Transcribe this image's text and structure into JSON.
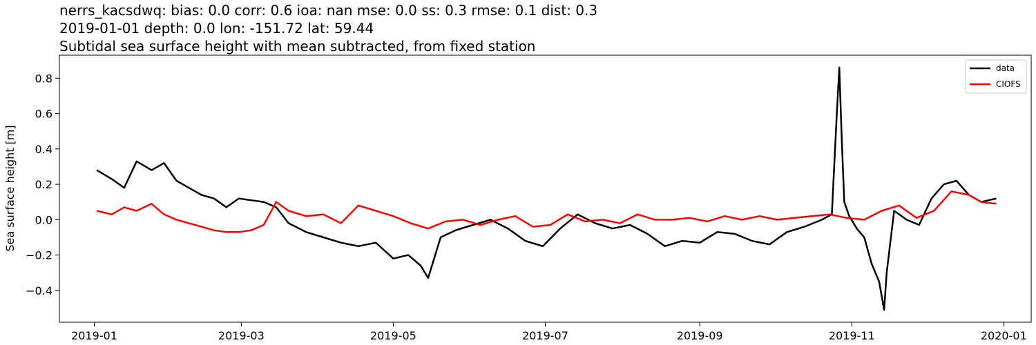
{
  "chart_data": {
    "type": "line",
    "title_lines": [
      "nerrs_kacsdwq: bias: 0.0  corr: 0.6  ioa: nan  mse: 0.0  ss: 0.3  rmse: 0.1  dist: 0.3",
      "2019-01-01 depth: 0.0 lon: -151.72 lat: 59.44",
      "Subtidal sea surface height with mean subtracted, from fixed station"
    ],
    "xlabel": "",
    "ylabel": "Sea surface height [m]",
    "xlim": [
      "2018-12-18",
      "2020-01-12"
    ],
    "ylim": [
      -0.58,
      0.93
    ],
    "x_ticks": [
      "2019-01",
      "2019-03",
      "2019-05",
      "2019-07",
      "2019-09",
      "2019-11",
      "2020-01"
    ],
    "y_ticks": [
      0.8,
      0.6,
      0.4,
      0.2,
      0.0,
      -0.2,
      -0.4
    ],
    "y_tick_labels": [
      "0.8",
      "0.6",
      "0.4",
      "0.2",
      "0.0",
      "−0.2",
      "−0.4"
    ],
    "grid": false,
    "legend_position": "top-right",
    "series": [
      {
        "name": "data",
        "color": "#000000",
        "x": [
          "2019-01-02",
          "2019-01-08",
          "2019-01-13",
          "2019-01-18",
          "2019-01-24",
          "2019-01-29",
          "2019-02-03",
          "2019-02-08",
          "2019-02-13",
          "2019-02-18",
          "2019-02-23",
          "2019-02-28",
          "2019-03-05",
          "2019-03-10",
          "2019-03-15",
          "2019-03-20",
          "2019-03-27",
          "2019-04-03",
          "2019-04-10",
          "2019-04-17",
          "2019-04-24",
          "2019-05-01",
          "2019-05-07",
          "2019-05-12",
          "2019-05-15",
          "2019-05-20",
          "2019-05-26",
          "2019-06-02",
          "2019-06-09",
          "2019-06-16",
          "2019-06-23",
          "2019-06-30",
          "2019-07-07",
          "2019-07-14",
          "2019-07-21",
          "2019-07-28",
          "2019-08-04",
          "2019-08-11",
          "2019-08-18",
          "2019-08-25",
          "2019-09-01",
          "2019-09-08",
          "2019-09-15",
          "2019-09-22",
          "2019-09-29",
          "2019-10-06",
          "2019-10-13",
          "2019-10-20",
          "2019-10-24",
          "2019-10-26",
          "2019-10-27",
          "2019-10-28",
          "2019-10-29",
          "2019-10-31",
          "2019-11-03",
          "2019-11-06",
          "2019-11-09",
          "2019-11-12",
          "2019-11-14",
          "2019-11-15",
          "2019-11-18",
          "2019-11-23",
          "2019-11-28",
          "2019-12-03",
          "2019-12-08",
          "2019-12-13",
          "2019-12-18",
          "2019-12-23",
          "2019-12-29"
        ],
        "y": [
          0.28,
          0.23,
          0.18,
          0.33,
          0.28,
          0.32,
          0.22,
          0.18,
          0.14,
          0.12,
          0.07,
          0.12,
          0.11,
          0.1,
          0.07,
          -0.02,
          -0.07,
          -0.1,
          -0.13,
          -0.15,
          -0.13,
          -0.22,
          -0.2,
          -0.26,
          -0.33,
          -0.1,
          -0.06,
          -0.03,
          0.0,
          -0.05,
          -0.12,
          -0.15,
          -0.05,
          0.03,
          -0.02,
          -0.05,
          -0.03,
          -0.08,
          -0.15,
          -0.12,
          -0.13,
          -0.07,
          -0.08,
          -0.12,
          -0.14,
          -0.07,
          -0.04,
          0.0,
          0.03,
          0.6,
          0.86,
          0.45,
          0.1,
          0.02,
          -0.05,
          -0.1,
          -0.25,
          -0.35,
          -0.51,
          -0.3,
          0.05,
          0.0,
          -0.03,
          0.12,
          0.2,
          0.22,
          0.14,
          0.1,
          0.12
        ]
      },
      {
        "name": "CIOFS",
        "color": "#ff0000",
        "x": [
          "2019-01-02",
          "2019-01-08",
          "2019-01-13",
          "2019-01-18",
          "2019-01-24",
          "2019-01-29",
          "2019-02-03",
          "2019-02-08",
          "2019-02-13",
          "2019-02-18",
          "2019-02-23",
          "2019-02-28",
          "2019-03-05",
          "2019-03-10",
          "2019-03-15",
          "2019-03-20",
          "2019-03-27",
          "2019-04-03",
          "2019-04-10",
          "2019-04-17",
          "2019-04-24",
          "2019-05-01",
          "2019-05-08",
          "2019-05-15",
          "2019-05-22",
          "2019-05-29",
          "2019-06-05",
          "2019-06-12",
          "2019-06-19",
          "2019-06-26",
          "2019-07-03",
          "2019-07-10",
          "2019-07-17",
          "2019-07-24",
          "2019-07-31",
          "2019-08-07",
          "2019-08-14",
          "2019-08-21",
          "2019-08-28",
          "2019-09-04",
          "2019-09-11",
          "2019-09-18",
          "2019-09-25",
          "2019-10-02",
          "2019-10-09",
          "2019-10-16",
          "2019-10-23",
          "2019-10-30",
          "2019-11-06",
          "2019-11-13",
          "2019-11-20",
          "2019-11-27",
          "2019-12-04",
          "2019-12-11",
          "2019-12-18",
          "2019-12-23",
          "2019-12-29"
        ],
        "y": [
          0.05,
          0.03,
          0.07,
          0.05,
          0.09,
          0.03,
          0.0,
          -0.02,
          -0.04,
          -0.06,
          -0.07,
          -0.07,
          -0.06,
          -0.03,
          0.1,
          0.05,
          0.02,
          0.03,
          -0.02,
          0.08,
          0.05,
          0.02,
          -0.02,
          -0.05,
          -0.01,
          0.0,
          -0.03,
          0.0,
          0.02,
          -0.04,
          -0.03,
          0.03,
          -0.01,
          0.0,
          -0.02,
          0.03,
          0.0,
          0.0,
          0.01,
          -0.01,
          0.02,
          0.0,
          0.02,
          0.0,
          0.01,
          0.02,
          0.03,
          0.01,
          0.0,
          0.05,
          0.08,
          0.01,
          0.05,
          0.16,
          0.14,
          0.1,
          0.09
        ]
      }
    ]
  }
}
